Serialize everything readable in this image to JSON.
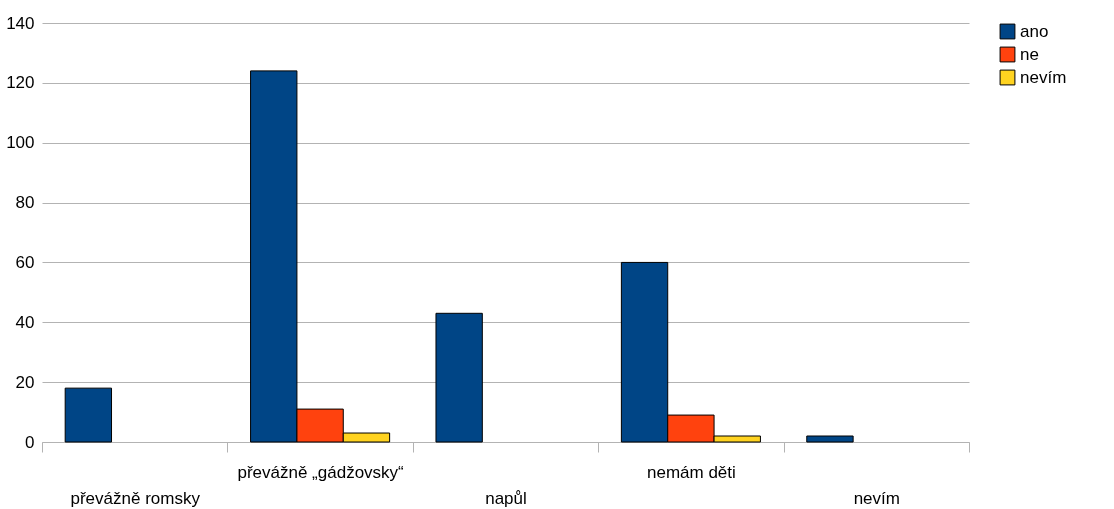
{
  "chart_data": {
    "type": "bar",
    "categories": [
      "převážně romsky",
      "převážně „gádžovsky“",
      "napůl",
      "nemám děti",
      "nevím"
    ],
    "series": [
      {
        "name": "ano",
        "color": "#004586",
        "values": [
          18,
          124,
          43,
          60,
          2
        ]
      },
      {
        "name": "ne",
        "color": "#ff420e",
        "values": [
          null,
          11,
          null,
          9,
          null
        ]
      },
      {
        "name": "nevím",
        "color": "#ffd320",
        "values": [
          null,
          3,
          null,
          2,
          null
        ]
      }
    ],
    "ylim": [
      0,
      140
    ],
    "yticks": [
      0,
      20,
      40,
      60,
      80,
      100,
      120,
      140
    ],
    "grid": "y",
    "legend": "right"
  }
}
